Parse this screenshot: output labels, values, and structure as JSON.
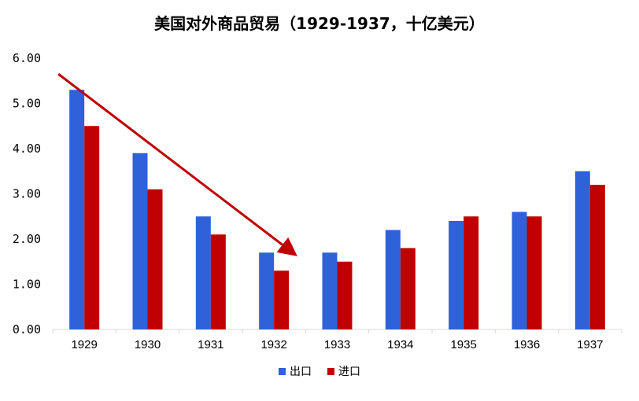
{
  "chart_data": {
    "type": "bar",
    "title": "美国对外商品贸易（1929-1937，十亿美元）",
    "categories": [
      "1929",
      "1930",
      "1931",
      "1932",
      "1933",
      "1934",
      "1935",
      "1936",
      "1937"
    ],
    "series": [
      {
        "name": "出口",
        "color": "#2f62d9",
        "values": [
          5.3,
          3.9,
          2.5,
          1.7,
          1.7,
          2.2,
          2.4,
          2.6,
          3.5
        ]
      },
      {
        "name": "进口",
        "color": "#c00000",
        "values": [
          4.5,
          3.1,
          2.1,
          1.3,
          1.5,
          1.8,
          2.5,
          2.5,
          3.2
        ]
      }
    ],
    "yticks": [
      "0.00",
      "1.00",
      "2.00",
      "3.00",
      "4.00",
      "5.00",
      "6.00"
    ],
    "ylim": [
      0,
      6
    ],
    "xlabel": "",
    "ylabel": "",
    "grid": false,
    "legend_position": "bottom",
    "annotation": {
      "type": "arrow",
      "color": "#c00000",
      "from": {
        "category": "1929",
        "value": 5.65
      },
      "to": {
        "category": "1932",
        "value": 1.7
      }
    }
  }
}
